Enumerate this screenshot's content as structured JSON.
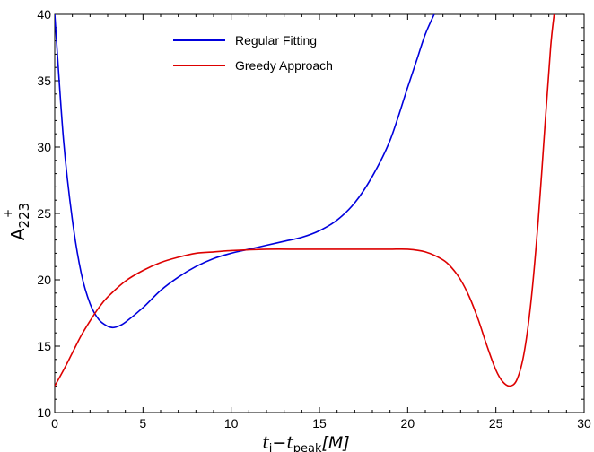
{
  "chart_data": {
    "type": "line",
    "xlabel": {
      "main": "t",
      "sub1": "i",
      "minus": "−",
      "main2": "t",
      "sub2": "peak",
      "unit": "[M]"
    },
    "ylabel": {
      "main": "A",
      "sup": "+",
      "sub": "223"
    },
    "xlim": [
      0,
      30
    ],
    "ylim": [
      10,
      40
    ],
    "xticks": [
      0,
      5,
      10,
      15,
      20,
      25,
      30
    ],
    "yticks": [
      10,
      15,
      20,
      25,
      30,
      35,
      40
    ],
    "xtick_labels": [
      "0",
      "5",
      "10",
      "15",
      "20",
      "25",
      "30"
    ],
    "ytick_labels": [
      "10",
      "15",
      "20",
      "25",
      "30",
      "35",
      "40"
    ],
    "grid": false,
    "legend_position": "top-center",
    "series": [
      {
        "name": "Regular Fitting",
        "color": "#0000dd",
        "x": [
          0.0,
          0.5,
          1.0,
          1.5,
          2.0,
          2.5,
          3.0,
          3.3,
          3.6,
          4.0,
          5.0,
          6.0,
          7.0,
          8.0,
          9.0,
          10.0,
          11.0,
          12.0,
          13.0,
          14.0,
          15.0,
          16.0,
          17.0,
          18.0,
          19.0,
          20.0,
          20.5,
          21.0,
          21.5
        ],
        "y": [
          40.0,
          30.5,
          24.5,
          20.5,
          18.2,
          17.0,
          16.5,
          16.4,
          16.5,
          16.8,
          17.9,
          19.2,
          20.2,
          21.0,
          21.6,
          22.0,
          22.3,
          22.6,
          22.9,
          23.2,
          23.7,
          24.5,
          25.8,
          27.8,
          30.5,
          34.5,
          36.5,
          38.5,
          40.0
        ]
      },
      {
        "name": "Greedy Approach",
        "color": "#dd0000",
        "x": [
          0.0,
          0.5,
          1.0,
          1.5,
          2.0,
          2.5,
          3.0,
          4.0,
          5.0,
          6.0,
          7.0,
          8.0,
          9.0,
          10.0,
          12.0,
          14.0,
          16.0,
          18.0,
          19.0,
          20.0,
          21.0,
          22.0,
          22.5,
          23.0,
          23.5,
          24.0,
          24.5,
          25.0,
          25.4,
          25.8,
          26.2,
          26.6,
          27.0,
          27.4,
          27.8,
          28.1,
          28.3
        ],
        "y": [
          12.0,
          13.2,
          14.5,
          15.8,
          16.9,
          17.9,
          18.7,
          19.9,
          20.7,
          21.3,
          21.7,
          22.0,
          22.1,
          22.2,
          22.3,
          22.3,
          22.3,
          22.3,
          22.3,
          22.3,
          22.1,
          21.5,
          20.9,
          20.0,
          18.7,
          17.0,
          15.0,
          13.2,
          12.3,
          12.0,
          12.5,
          14.5,
          18.5,
          24.5,
          32.0,
          37.5,
          40.0
        ]
      }
    ]
  }
}
